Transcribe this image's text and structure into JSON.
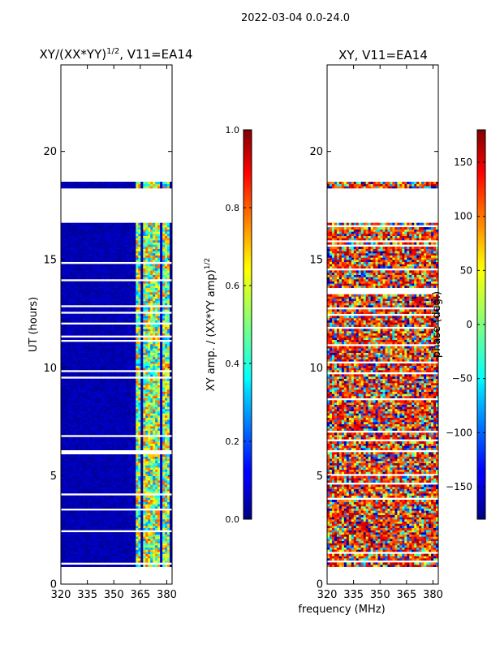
{
  "figure": {
    "suptitle": "2022-03-04 0.0-24.0",
    "xlabel": "frequency (MHz)"
  },
  "chart_data": [
    {
      "type": "heatmap",
      "title": "XY/(XX*YY)^1/2, V11=EA14",
      "title_main": "XY/(XX*YY)",
      "title_exp": "1/2",
      "title_tail": ", V11=EA14",
      "xlabel": "",
      "ylabel": "UT (hours)",
      "xlim": [
        320,
        383
      ],
      "ylim": [
        0,
        24
      ],
      "xticks": [
        320,
        335,
        350,
        365,
        380
      ],
      "yticks": [
        0,
        5,
        10,
        15,
        20
      ],
      "data_rows_hours": [
        [
          0.8,
          16.7
        ],
        [
          18.3,
          18.6
        ]
      ],
      "colorbar": {
        "label": "XY amp. / (XX*YY amp)^1/2",
        "label_main": "XY amp. / (XX*YY amp)",
        "label_exp": "1/2",
        "range": [
          0.0,
          1.0
        ],
        "ticks": [
          "0.0",
          "0.2",
          "0.4",
          "0.6",
          "0.8",
          "1.0"
        ],
        "tick_values": [
          0.0,
          0.2,
          0.4,
          0.6,
          0.8,
          1.0
        ]
      }
    },
    {
      "type": "heatmap",
      "title": "XY, V11=EA14",
      "xlabel": "frequency (MHz)",
      "ylabel": "",
      "xlim": [
        320,
        383
      ],
      "ylim": [
        0,
        24
      ],
      "xticks": [
        320,
        335,
        350,
        365,
        380
      ],
      "yticks": [
        0,
        5,
        10,
        15,
        20
      ],
      "data_rows_hours": [
        [
          0.8,
          16.7
        ],
        [
          18.3,
          18.6
        ]
      ],
      "colorbar": {
        "label": "phase (deg.)",
        "range": [
          -180,
          180
        ],
        "ticks": [
          "−150",
          "−100",
          "−50",
          "0",
          "50",
          "100",
          "150"
        ],
        "tick_values": [
          -150,
          -100,
          -50,
          0,
          50,
          100,
          150
        ]
      }
    }
  ]
}
